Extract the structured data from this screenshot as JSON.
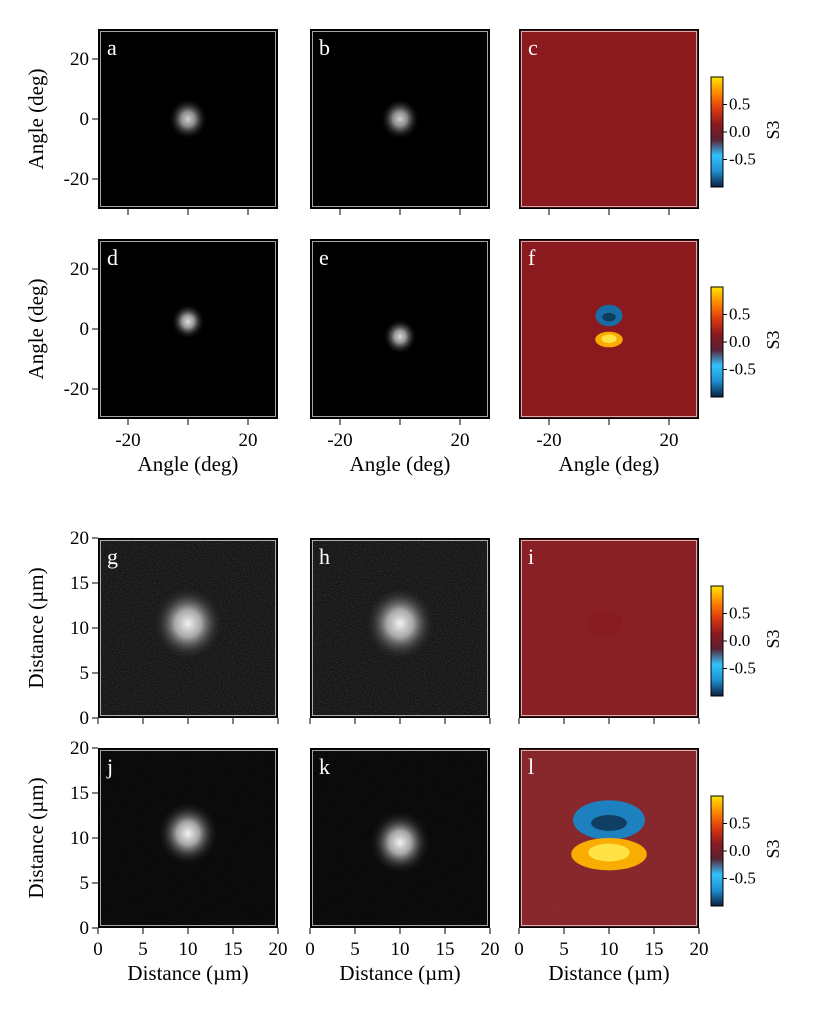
{
  "chart_data": {
    "type": "heatmap",
    "figure_description_text": [],
    "colors": {
      "intensity_background": "#000000",
      "s3_background": "#8b1a1f",
      "panel_letter": "#ffffff",
      "frame": "#000000"
    },
    "colorbar_stops": [
      "#0b1f3f",
      "#1e8fd0",
      "#32c2ff",
      "#5a2233",
      "#8b1a1f",
      "#e03a10",
      "#ff8a00",
      "#ffe300"
    ],
    "rows": [
      {
        "domain": "angle",
        "ylabel": "Angle (deg)",
        "xlabel": "",
        "y_ticks": [
          "20",
          "0",
          "-20"
        ],
        "x_ticks": [],
        "panels": [
          {
            "letter": "a",
            "kind": "intensity",
            "spots": [
              {
                "cx": 0,
                "cy": 0,
                "sigma": 3.0,
                "peak": 0.82
              }
            ]
          },
          {
            "letter": "b",
            "kind": "intensity",
            "spots": [
              {
                "cx": 0,
                "cy": 0,
                "sigma": 3.0,
                "peak": 0.82
              }
            ]
          },
          {
            "letter": "c",
            "kind": "s3",
            "features": []
          }
        ],
        "colorbar": {
          "title": "S3",
          "ticks": [
            "0.5",
            "0.0",
            "-0.5"
          ]
        }
      },
      {
        "domain": "angle",
        "ylabel": "Angle (deg)",
        "xlabel": "Angle (deg)",
        "y_ticks": [
          "20",
          "0",
          "-20"
        ],
        "x_ticks": [
          "-20",
          "20"
        ],
        "panels": [
          {
            "letter": "d",
            "kind": "intensity",
            "spots": [
              {
                "cx": 0,
                "cy": 2.5,
                "sigma": 2.6,
                "peak": 0.88
              }
            ]
          },
          {
            "letter": "e",
            "kind": "intensity",
            "spots": [
              {
                "cx": 0,
                "cy": -2.5,
                "sigma": 2.6,
                "peak": 0.85
              }
            ]
          },
          {
            "letter": "f",
            "kind": "s3",
            "features": [
              {
                "shape": "ring",
                "cx": 0,
                "cy": 4.5,
                "rx": 4.5,
                "ry": 3.6,
                "value": -0.8
              },
              {
                "shape": "blob",
                "cx": 0,
                "cy": -3.5,
                "rx": 4.6,
                "ry": 2.6,
                "value": 0.85
              }
            ]
          }
        ],
        "colorbar": {
          "title": "S3",
          "ticks": [
            "0.5",
            "0.0",
            "-0.5"
          ]
        }
      },
      {
        "domain": "distance",
        "ylabel": "Distance (µm)",
        "xlabel": "",
        "y_ticks": [
          "20",
          "15",
          "10",
          "5",
          "0"
        ],
        "x_ticks": [],
        "panels": [
          {
            "letter": "g",
            "kind": "intensity",
            "spots": [
              {
                "cx": 10,
                "cy": 10.5,
                "sigma": 1.9,
                "peak": 0.95
              }
            ]
          },
          {
            "letter": "h",
            "kind": "intensity",
            "spots": [
              {
                "cx": 10,
                "cy": 10.5,
                "sigma": 1.9,
                "peak": 0.95
              }
            ]
          },
          {
            "letter": "i",
            "kind": "s3",
            "features": [
              {
                "shape": "blob",
                "cx": 9.5,
                "cy": 10.5,
                "rx": 2.0,
                "ry": 1.4,
                "value": 0.12
              }
            ]
          }
        ],
        "colorbar": {
          "title": "S3",
          "ticks": [
            "0.5",
            "0.0",
            "-0.5"
          ]
        }
      },
      {
        "domain": "distance",
        "ylabel": "Distance (µm)",
        "xlabel": "Distance (µm)",
        "y_ticks": [
          "20",
          "15",
          "10",
          "5",
          "0"
        ],
        "x_ticks": [
          "0",
          "5",
          "10",
          "15",
          "20"
        ],
        "panels": [
          {
            "letter": "j",
            "kind": "intensity",
            "spots": [
              {
                "cx": 10,
                "cy": 10.5,
                "sigma": 1.6,
                "peak": 0.95
              }
            ]
          },
          {
            "letter": "k",
            "kind": "intensity",
            "spots": [
              {
                "cx": 10,
                "cy": 9.5,
                "sigma": 1.6,
                "peak": 0.95
              }
            ]
          },
          {
            "letter": "l",
            "kind": "s3",
            "features": [
              {
                "shape": "ring",
                "cx": 10,
                "cy": 12.0,
                "rx": 4.0,
                "ry": 2.2,
                "value": -0.75
              },
              {
                "shape": "blob",
                "cx": 10,
                "cy": 8.2,
                "rx": 4.2,
                "ry": 1.8,
                "value": 0.85
              }
            ]
          }
        ],
        "colorbar": {
          "title": "S3",
          "ticks": [
            "0.5",
            "0.0",
            "-0.5"
          ]
        }
      }
    ],
    "ranges": {
      "angle": {
        "min": -30,
        "max": 30
      },
      "distance": {
        "min": 0,
        "max": 20
      }
    }
  }
}
